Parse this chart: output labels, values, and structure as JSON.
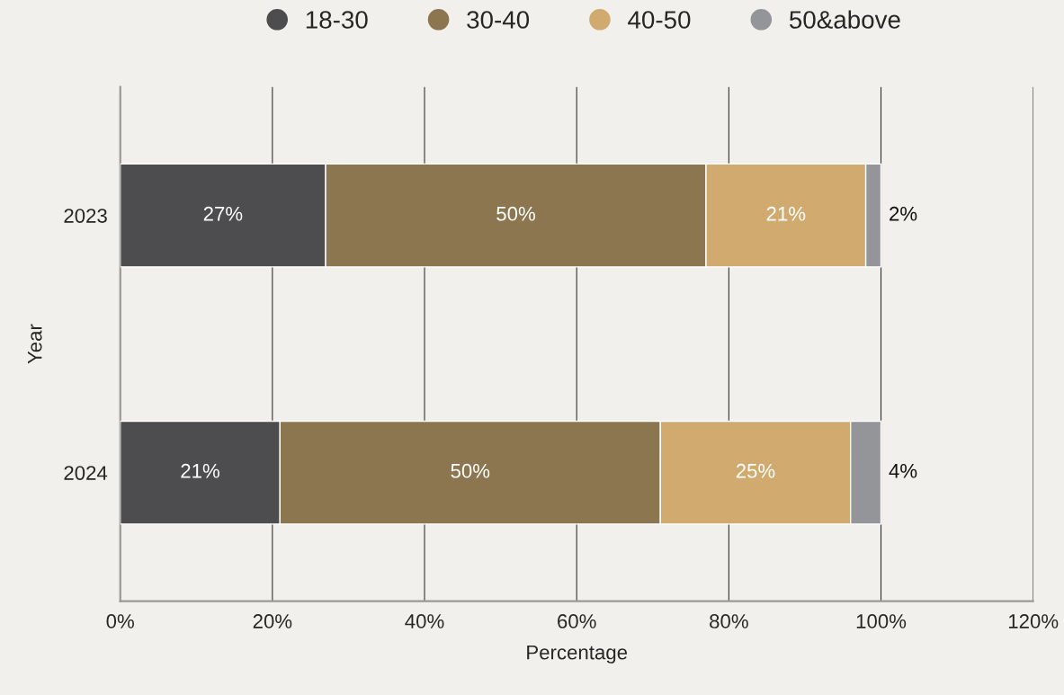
{
  "chart_data": {
    "type": "bar",
    "orientation": "horizontal",
    "stacked": true,
    "categories": [
      "2023",
      "2024"
    ],
    "series": [
      {
        "name": "18-30",
        "color": "#4d4d50",
        "values": [
          27,
          21
        ]
      },
      {
        "name": "30-40",
        "color": "#8b7650",
        "values": [
          50,
          50
        ]
      },
      {
        "name": "40-50",
        "color": "#d0aa6e",
        "values": [
          21,
          25
        ]
      },
      {
        "name": "50&above",
        "color": "#939599",
        "values": [
          2,
          4
        ]
      }
    ],
    "xlabel": "Percentage",
    "ylabel": "Year",
    "xlim": [
      0,
      120
    ],
    "xticks": [
      {
        "value": 0,
        "label": "0%"
      },
      {
        "value": 20,
        "label": "20%"
      },
      {
        "value": 40,
        "label": "40%"
      },
      {
        "value": 60,
        "label": "60%"
      },
      {
        "value": 80,
        "label": "80%"
      },
      {
        "value": 100,
        "label": "100%"
      },
      {
        "value": 120,
        "label": "120%"
      }
    ],
    "value_labels": [
      [
        "27%",
        "21%"
      ],
      [
        "50%",
        "50%"
      ],
      [
        "21%",
        "25%"
      ],
      [
        "2%",
        "4%"
      ]
    ],
    "grid": "x",
    "legend": "top",
    "marker": "circle"
  }
}
